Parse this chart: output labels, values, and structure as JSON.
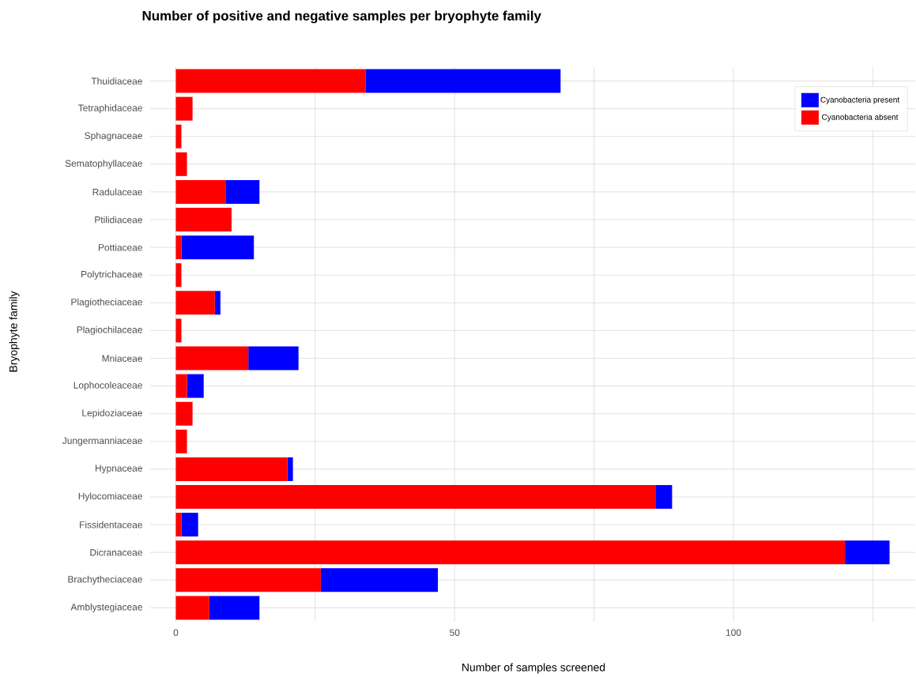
{
  "chart_data": {
    "type": "bar",
    "orientation": "horizontal",
    "stacked": true,
    "title": "Number of positive and negative samples per bryophyte family",
    "xlabel": "Number of samples screened",
    "ylabel": "Bryophyte family",
    "categories": [
      "Thuidiaceae",
      "Tetraphidaceae",
      "Sphagnaceae",
      "Sematophyllaceae",
      "Radulaceae",
      "Ptilidiaceae",
      "Pottiaceae",
      "Polytrichaceae",
      "Plagiotheciaceae",
      "Plagiochilaceae",
      "Mniaceae",
      "Lophocoleaceae",
      "Lepidoziaceae",
      "Jungermanniaceae",
      "Hypnaceae",
      "Hylocomiaceae",
      "Fissidentaceae",
      "Dicranaceae",
      "Brachytheciaceae",
      "Amblystegiaceae"
    ],
    "series": [
      {
        "name": "Cyanobacteria absent",
        "color": "#ff0000",
        "values": [
          34,
          3,
          1,
          2,
          9,
          10,
          1,
          1,
          7,
          1,
          13,
          2,
          3,
          2,
          20,
          86,
          1,
          120,
          26,
          6
        ]
      },
      {
        "name": "Cyanobacteria present",
        "color": "#0000ff",
        "values": [
          35,
          0,
          0,
          0,
          6,
          0,
          13,
          0,
          1,
          0,
          9,
          3,
          0,
          0,
          1,
          3,
          3,
          8,
          21,
          9
        ]
      }
    ],
    "xlim": [
      -4.6,
      132.6
    ],
    "xticks": [
      0,
      {
        "value": 25,
        "label": null
      },
      50,
      {
        "value": 75,
        "label": null
      },
      100,
      {
        "value": 125,
        "label": null
      }
    ],
    "grid": true,
    "legend": "top right"
  }
}
